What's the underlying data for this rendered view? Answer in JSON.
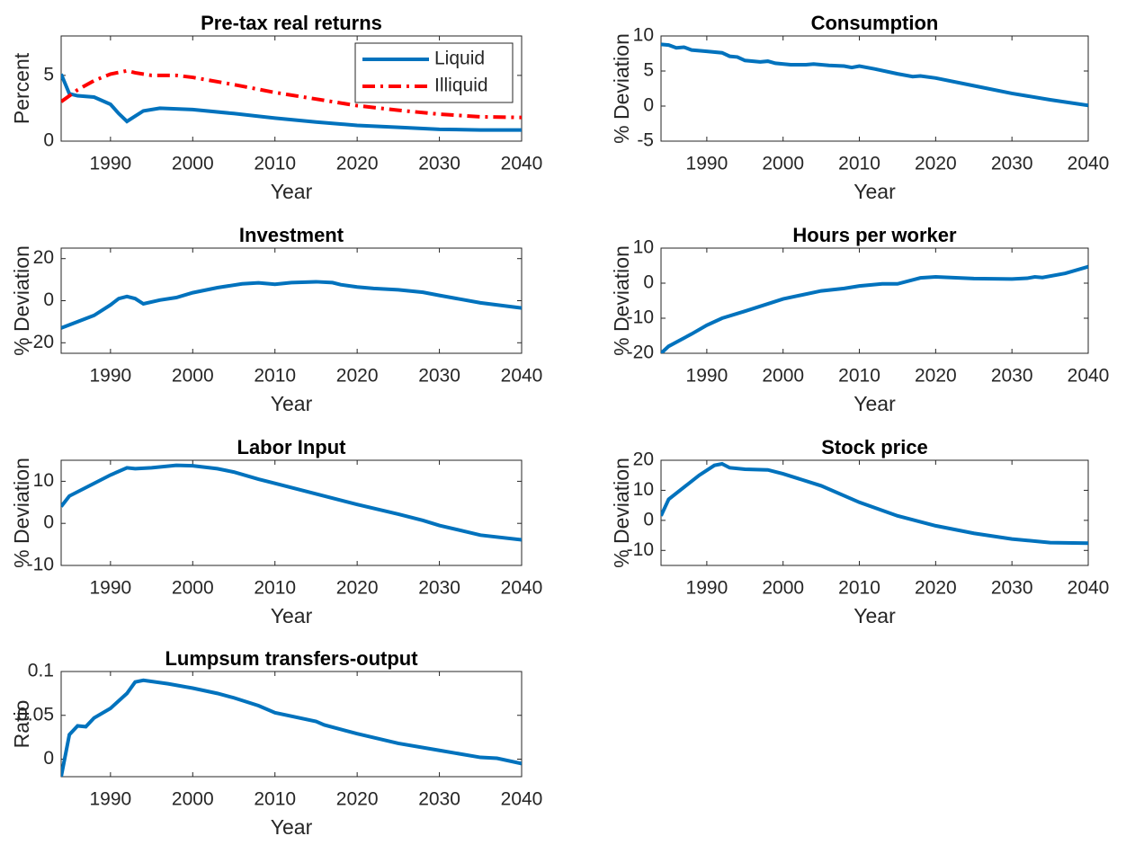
{
  "chart_data": [
    {
      "type": "line",
      "title": "Pre-tax real returns",
      "xlabel": "Year",
      "ylabel": "Percent",
      "xlim": [
        1984,
        2040
      ],
      "xticks": [
        1990,
        2000,
        2010,
        2020,
        2030,
        2040
      ],
      "ylim": [
        0,
        8
      ],
      "yticks": [
        0,
        5
      ],
      "legend": "upper right",
      "series": [
        {
          "name": "Liquid",
          "color": "#0072bd",
          "style": "solid",
          "x": [
            1984,
            1985,
            1986,
            1988,
            1990,
            1991,
            1992,
            1993,
            1994,
            1996,
            2000,
            2005,
            2010,
            2015,
            2020,
            2025,
            2030,
            2035,
            2040
          ],
          "values": [
            5.1,
            3.6,
            3.45,
            3.35,
            2.8,
            2.1,
            1.5,
            1.9,
            2.3,
            2.5,
            2.4,
            2.1,
            1.75,
            1.45,
            1.2,
            1.05,
            0.9,
            0.85,
            0.85
          ]
        },
        {
          "name": "Illiquid",
          "color": "#ff0000",
          "style": "dashdot",
          "x": [
            1984,
            1986,
            1988,
            1990,
            1992,
            1993,
            1995,
            1998,
            2000,
            2005,
            2010,
            2015,
            2020,
            2025,
            2030,
            2035,
            2040
          ],
          "values": [
            3.0,
            3.9,
            4.6,
            5.1,
            5.35,
            5.2,
            5.0,
            5.0,
            4.85,
            4.3,
            3.7,
            3.2,
            2.7,
            2.35,
            2.05,
            1.85,
            1.8
          ]
        }
      ]
    },
    {
      "type": "line",
      "title": "Consumption",
      "xlabel": "Year",
      "ylabel": "% Deviation",
      "xlim": [
        1984,
        2040
      ],
      "xticks": [
        1990,
        2000,
        2010,
        2020,
        2030,
        2040
      ],
      "ylim": [
        -5,
        10
      ],
      "yticks": [
        -5,
        0,
        5,
        10
      ],
      "color": "#0072bd",
      "x": [
        1984,
        1985,
        1986,
        1987,
        1988,
        1990,
        1992,
        1993,
        1994,
        1995,
        1997,
        1998,
        1999,
        2001,
        2003,
        2004,
        2006,
        2008,
        2009,
        2010,
        2012,
        2015,
        2017,
        2018,
        2020,
        2025,
        2030,
        2035,
        2040
      ],
      "values": [
        8.8,
        8.7,
        8.3,
        8.4,
        8.0,
        7.8,
        7.6,
        7.1,
        7.0,
        6.5,
        6.3,
        6.4,
        6.1,
        5.9,
        5.9,
        6.0,
        5.8,
        5.7,
        5.5,
        5.7,
        5.3,
        4.6,
        4.2,
        4.3,
        4.0,
        2.9,
        1.8,
        0.9,
        0.1
      ]
    },
    {
      "type": "line",
      "title": "Investment",
      "xlabel": "Year",
      "ylabel": "% Deviation",
      "xlim": [
        1984,
        2040
      ],
      "xticks": [
        1990,
        2000,
        2010,
        2020,
        2030,
        2040
      ],
      "ylim": [
        -25,
        25
      ],
      "yticks": [
        -20,
        0,
        20
      ],
      "color": "#0072bd",
      "x": [
        1984,
        1986,
        1988,
        1990,
        1991,
        1992,
        1993,
        1994,
        1996,
        1998,
        2000,
        2003,
        2006,
        2008,
        2010,
        2012,
        2015,
        2017,
        2018,
        2020,
        2022,
        2025,
        2028,
        2030,
        2035,
        2040
      ],
      "values": [
        -13,
        -10,
        -7,
        -2,
        1,
        2,
        1,
        -1.5,
        0.3,
        1.5,
        3.8,
        6.2,
        8,
        8.5,
        7.8,
        8.6,
        9,
        8.6,
        7.6,
        6.5,
        5.8,
        5.2,
        4,
        2.5,
        -1,
        -3.5
      ]
    },
    {
      "type": "line",
      "title": "Hours per worker",
      "xlabel": "Year",
      "ylabel": "% Deviation",
      "xlim": [
        1984,
        2040
      ],
      "xticks": [
        1990,
        2000,
        2010,
        2020,
        2030,
        2040
      ],
      "ylim": [
        -20,
        10
      ],
      "yticks": [
        -20,
        -10,
        0,
        10
      ],
      "color": "#0072bd",
      "x": [
        1984,
        1985,
        1988,
        1990,
        1992,
        1995,
        2000,
        2005,
        2008,
        2010,
        2013,
        2015,
        2018,
        2020,
        2025,
        2030,
        2032,
        2033,
        2034,
        2037,
        2040
      ],
      "values": [
        -20,
        -18,
        -14.5,
        -12,
        -10,
        -8,
        -4.5,
        -2.2,
        -1.5,
        -0.8,
        -0.2,
        -0.2,
        1.5,
        1.8,
        1.3,
        1.2,
        1.4,
        1.8,
        1.6,
        2.8,
        4.7
      ]
    },
    {
      "type": "line",
      "title": "Labor Input",
      "xlabel": "Year",
      "ylabel": "% Deviation",
      "xlim": [
        1984,
        2040
      ],
      "xticks": [
        1990,
        2000,
        2010,
        2020,
        2030,
        2040
      ],
      "ylim": [
        -10,
        15
      ],
      "yticks": [
        -10,
        0,
        10
      ],
      "color": "#0072bd",
      "x": [
        1984,
        1985,
        1988,
        1990,
        1992,
        1993,
        1995,
        1998,
        2000,
        2003,
        2005,
        2008,
        2010,
        2015,
        2020,
        2025,
        2028,
        2030,
        2035,
        2040
      ],
      "values": [
        4,
        6.5,
        9.5,
        11.5,
        13.2,
        13,
        13.2,
        13.8,
        13.7,
        13,
        12.2,
        10.5,
        9.5,
        7,
        4.5,
        2.2,
        0.7,
        -0.5,
        -2.8,
        -3.9
      ]
    },
    {
      "type": "line",
      "title": "Stock price",
      "xlabel": "Year",
      "ylabel": "% Deviation",
      "xlim": [
        1984,
        2040
      ],
      "xticks": [
        1990,
        2000,
        2010,
        2020,
        2030,
        2040
      ],
      "ylim": [
        -15,
        20
      ],
      "yticks": [
        -10,
        0,
        10,
        20
      ],
      "color": "#0072bd",
      "x": [
        1984,
        1985,
        1987,
        1989,
        1991,
        1992,
        1993,
        1995,
        1998,
        2000,
        2005,
        2010,
        2015,
        2020,
        2025,
        2030,
        2035,
        2040
      ],
      "values": [
        1.5,
        7,
        11,
        15,
        18.3,
        18.8,
        17.5,
        17,
        16.8,
        15.5,
        11.5,
        6,
        1.5,
        -1.8,
        -4.3,
        -6.2,
        -7.4,
        -7.6
      ]
    },
    {
      "type": "line",
      "title": "Lumpsum transfers-output",
      "xlabel": "Year",
      "ylabel": "Ratio",
      "xlim": [
        1984,
        2040
      ],
      "xticks": [
        1990,
        2000,
        2010,
        2020,
        2030,
        2040
      ],
      "ylim": [
        -0.02,
        0.1
      ],
      "yticks": [
        0,
        0.05,
        0.1
      ],
      "color": "#0072bd",
      "x": [
        1984,
        1985,
        1986,
        1987,
        1988,
        1990,
        1992,
        1993,
        1994,
        1997,
        2000,
        2003,
        2005,
        2008,
        2010,
        2015,
        2016,
        2020,
        2025,
        2030,
        2035,
        2037,
        2040
      ],
      "values": [
        -0.02,
        0.028,
        0.038,
        0.037,
        0.047,
        0.058,
        0.075,
        0.088,
        0.09,
        0.086,
        0.081,
        0.075,
        0.07,
        0.061,
        0.053,
        0.043,
        0.039,
        0.029,
        0.018,
        0.01,
        0.002,
        0.001,
        -0.005
      ]
    }
  ]
}
